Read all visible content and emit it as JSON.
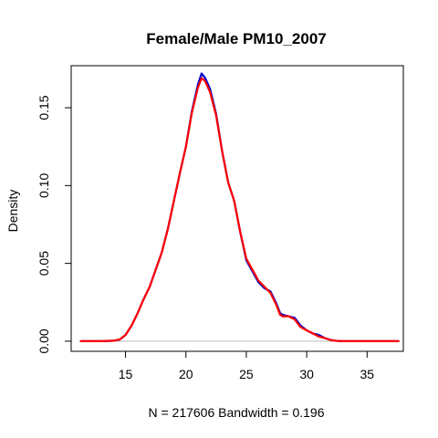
{
  "chart_data": {
    "type": "line",
    "title": "Female/Male PM10_2007",
    "xlabel": "N = 217606   Bandwidth = 0.196",
    "ylabel": "Density",
    "xlim": [
      10.5,
      38.0
    ],
    "ylim": [
      -0.0065,
      0.177
    ],
    "x_ticks": [
      15,
      20,
      25,
      30,
      35
    ],
    "y_ticks": [
      0.0,
      0.05,
      0.1,
      0.15
    ],
    "x_tick_labels": [
      "15",
      "20",
      "25",
      "30",
      "35"
    ],
    "y_tick_labels": [
      "0.00",
      "0.05",
      "0.10",
      "0.15"
    ],
    "zero_line": true,
    "colors": {
      "series_1": "#0000CD",
      "series_2": "#FF0000",
      "zero_line": "#BEBEBE",
      "frame": "#000000"
    },
    "series": [
      {
        "color": "#0000CD",
        "points": [
          [
            11.3,
            0
          ],
          [
            13.0,
            0
          ],
          [
            14.0,
            0.0003
          ],
          [
            14.5,
            0.001
          ],
          [
            15.0,
            0.004
          ],
          [
            15.5,
            0.01
          ],
          [
            16.0,
            0.018
          ],
          [
            16.5,
            0.027
          ],
          [
            17.0,
            0.035
          ],
          [
            17.5,
            0.046
          ],
          [
            18.0,
            0.057
          ],
          [
            18.5,
            0.072
          ],
          [
            19.0,
            0.09
          ],
          [
            19.5,
            0.108
          ],
          [
            20.0,
            0.125
          ],
          [
            20.5,
            0.148
          ],
          [
            21.0,
            0.165
          ],
          [
            21.3,
            0.172
          ],
          [
            21.6,
            0.169
          ],
          [
            22.0,
            0.162
          ],
          [
            22.5,
            0.146
          ],
          [
            23.0,
            0.122
          ],
          [
            23.5,
            0.102
          ],
          [
            24.0,
            0.09
          ],
          [
            24.5,
            0.07
          ],
          [
            25.0,
            0.052
          ],
          [
            25.5,
            0.045
          ],
          [
            26.0,
            0.038
          ],
          [
            26.5,
            0.034
          ],
          [
            27.0,
            0.032
          ],
          [
            27.5,
            0.024
          ],
          [
            27.8,
            0.018
          ],
          [
            28.0,
            0.017
          ],
          [
            28.5,
            0.016
          ],
          [
            29.0,
            0.015
          ],
          [
            29.5,
            0.01
          ],
          [
            30.0,
            0.007
          ],
          [
            30.5,
            0.005
          ],
          [
            31.0,
            0.004
          ],
          [
            31.5,
            0.002
          ],
          [
            32.0,
            0.0008
          ],
          [
            32.5,
            0.0002
          ],
          [
            33.0,
            0
          ],
          [
            37.6,
            0
          ]
        ]
      },
      {
        "color": "#FF0000",
        "points": [
          [
            11.3,
            0
          ],
          [
            13.0,
            0
          ],
          [
            14.0,
            0.0003
          ],
          [
            14.5,
            0.001
          ],
          [
            15.0,
            0.004
          ],
          [
            15.5,
            0.01
          ],
          [
            16.0,
            0.018
          ],
          [
            16.5,
            0.027
          ],
          [
            17.0,
            0.035
          ],
          [
            17.5,
            0.046
          ],
          [
            18.0,
            0.057
          ],
          [
            18.5,
            0.072
          ],
          [
            19.0,
            0.09
          ],
          [
            19.5,
            0.108
          ],
          [
            20.0,
            0.125
          ],
          [
            20.5,
            0.147
          ],
          [
            21.0,
            0.163
          ],
          [
            21.3,
            0.169
          ],
          [
            21.6,
            0.167
          ],
          [
            22.0,
            0.16
          ],
          [
            22.5,
            0.145
          ],
          [
            23.0,
            0.122
          ],
          [
            23.5,
            0.102
          ],
          [
            24.0,
            0.09
          ],
          [
            24.5,
            0.07
          ],
          [
            25.0,
            0.053
          ],
          [
            25.5,
            0.046
          ],
          [
            26.0,
            0.039
          ],
          [
            26.5,
            0.035
          ],
          [
            27.0,
            0.031
          ],
          [
            27.5,
            0.023
          ],
          [
            27.8,
            0.017
          ],
          [
            28.0,
            0.016
          ],
          [
            28.5,
            0.016
          ],
          [
            29.0,
            0.014
          ],
          [
            29.5,
            0.009
          ],
          [
            30.0,
            0.007
          ],
          [
            30.5,
            0.005
          ],
          [
            31.0,
            0.003
          ],
          [
            31.5,
            0.002
          ],
          [
            32.0,
            0.0006
          ],
          [
            32.5,
            0.0002
          ],
          [
            33.0,
            0
          ],
          [
            37.6,
            0
          ]
        ]
      }
    ]
  }
}
